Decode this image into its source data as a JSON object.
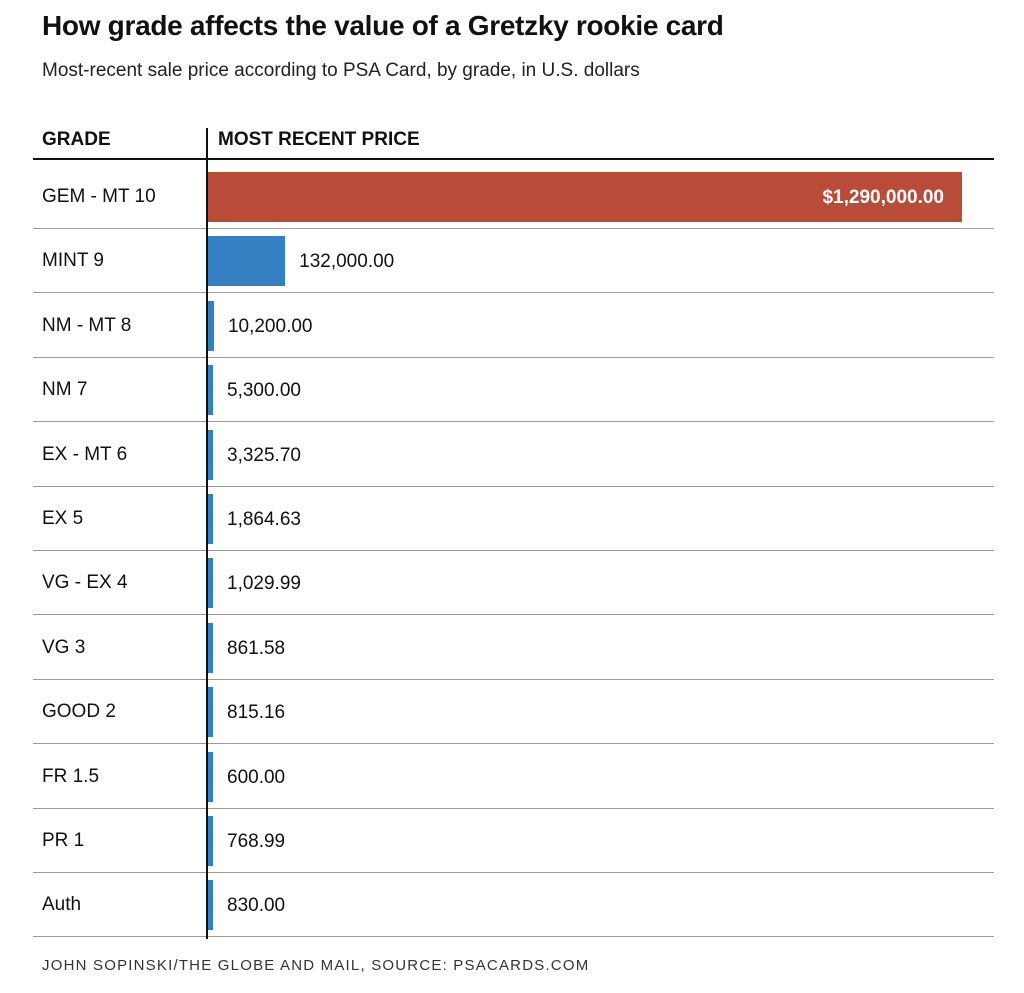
{
  "header": {
    "title": "How grade affects the value of a Gretzky rookie card",
    "subtitle": "Most-recent sale price according to PSA Card, by grade, in U.S. dollars",
    "col_grade": "GRADE",
    "col_price": "MOST RECENT PRICE"
  },
  "footer": {
    "credit": "JOHN SOPINSKI/THE GLOBE AND MAIL, SOURCE: PSACARDS.COM"
  },
  "colors": {
    "highlight": "#b84c38",
    "bar": "#3480c2"
  },
  "chart_data": {
    "type": "bar",
    "orientation": "horizontal",
    "title": "How grade affects the value of a Gretzky rookie card",
    "subtitle": "Most-recent sale price according to PSA Card, by grade, in U.S. dollars",
    "xlabel": "MOST RECENT PRICE",
    "ylabel": "GRADE",
    "xlim": [
      0,
      1290000
    ],
    "grid": false,
    "categories": [
      "GEM - MT 10",
      "MINT 9",
      "NM - MT 8",
      "NM 7",
      "EX - MT 6",
      "EX 5",
      "VG - EX 4",
      "VG 3",
      "GOOD 2",
      "FR 1.5",
      "PR 1",
      "Auth"
    ],
    "values": [
      1290000.0,
      132000.0,
      10200.0,
      5300.0,
      3325.7,
      1864.63,
      1029.99,
      861.58,
      815.16,
      600.0,
      768.99,
      830.0
    ],
    "value_labels": [
      "$1,290,000.00",
      "132,000.00",
      "10,200.00",
      "5,300.00",
      "3,325.70",
      "1,864.63",
      "1,029.99",
      "861.58",
      "815.16",
      "600.00",
      "768.99",
      "830.00"
    ],
    "highlight_index": 0
  }
}
